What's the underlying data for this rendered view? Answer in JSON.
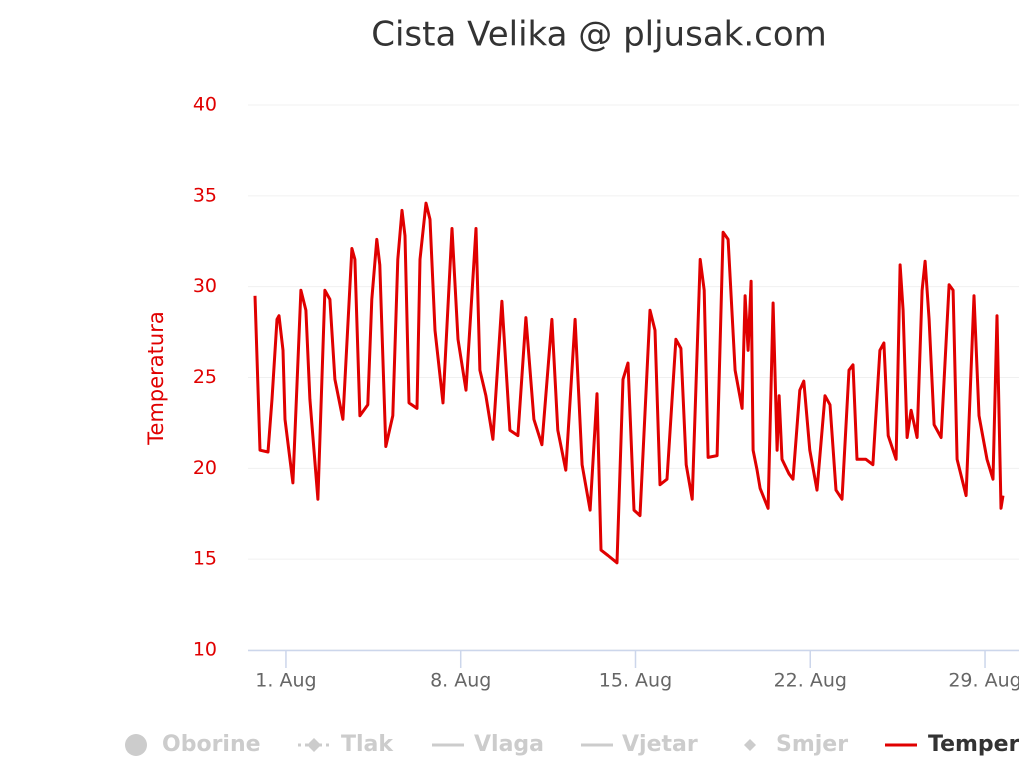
{
  "chart_data": {
    "type": "line",
    "title": "Cista Velika @ pljusak.com",
    "y_axis_label": "Temperatura",
    "axis_color": "#e00000",
    "grid": true,
    "xlim": [
      -0.52,
      30
    ],
    "xticks": [
      {
        "value": 1,
        "label": "1. Aug"
      },
      {
        "value": 8,
        "label": "8. Aug"
      },
      {
        "value": 15,
        "label": "15. Aug"
      },
      {
        "value": 22,
        "label": "22. Aug"
      },
      {
        "value": 29,
        "label": "29. Aug"
      }
    ],
    "ylim": [
      10,
      40
    ],
    "yticks": [
      10,
      15,
      20,
      25,
      30,
      35,
      40
    ],
    "series": [
      {
        "name": "Oborine",
        "visible": false,
        "symbol": "circle"
      },
      {
        "name": "Tlak",
        "visible": false,
        "symbol": "dash-diamond"
      },
      {
        "name": "Vlaga",
        "visible": false,
        "symbol": "line"
      },
      {
        "name": "Vjetar",
        "visible": false,
        "symbol": "line"
      },
      {
        "name": "Smjer",
        "visible": false,
        "symbol": "diamond"
      },
      {
        "name": "Temperatura",
        "visible": true,
        "symbol": "line",
        "color": "#e00000",
        "x": [
          -0.24,
          -0.04,
          0.28,
          0.44,
          0.64,
          0.72,
          0.88,
          0.96,
          1.28,
          1.6,
          1.8,
          1.96,
          2.28,
          2.56,
          2.76,
          2.96,
          3.28,
          3.64,
          3.76,
          3.96,
          4.28,
          4.44,
          4.64,
          4.76,
          5.0,
          5.28,
          5.48,
          5.65,
          5.77,
          5.93,
          6.25,
          6.37,
          6.61,
          6.77,
          6.97,
          7.29,
          7.65,
          7.89,
          8.21,
          8.61,
          8.77,
          9.01,
          9.29,
          9.65,
          9.97,
          10.29,
          10.61,
          10.93,
          11.25,
          11.65,
          11.89,
          12.21,
          12.58,
          12.86,
          13.18,
          13.46,
          13.62,
          13.9,
          14.26,
          14.5,
          14.7,
          14.94,
          15.18,
          15.58,
          15.78,
          15.98,
          16.26,
          16.62,
          16.82,
          17.03,
          17.27,
          17.59,
          17.75,
          17.91,
          18.27,
          18.51,
          18.71,
          18.99,
          19.27,
          19.39,
          19.51,
          19.63,
          19.71,
          19.87,
          19.99,
          20.31,
          20.51,
          20.67,
          20.75,
          20.87,
          21.15,
          21.31,
          21.58,
          21.74,
          21.98,
          22.27,
          22.59,
          22.79,
          23.03,
          23.27,
          23.55,
          23.71,
          23.87,
          24.23,
          24.51,
          24.79,
          24.95,
          25.12,
          25.44,
          25.6,
          25.72,
          25.88,
          26.04,
          26.28,
          26.48,
          26.6,
          26.76,
          26.96,
          27.24,
          27.56,
          27.72,
          27.88,
          28.24,
          28.56,
          28.76,
          29.08,
          29.32,
          29.48,
          29.64,
          29.72
        ],
        "values": [
          29.5,
          21.0,
          20.9,
          23.8,
          28.2,
          28.4,
          26.5,
          22.7,
          19.2,
          29.8,
          28.7,
          23.8,
          18.3,
          29.8,
          29.3,
          24.9,
          22.7,
          32.1,
          31.5,
          22.9,
          23.5,
          29.3,
          32.6,
          31.2,
          21.2,
          22.9,
          31.5,
          34.2,
          32.8,
          23.6,
          23.3,
          31.5,
          34.6,
          33.7,
          27.6,
          23.6,
          33.2,
          27.1,
          24.3,
          33.2,
          25.4,
          24.0,
          21.6,
          29.2,
          22.1,
          21.8,
          28.3,
          22.7,
          21.3,
          28.2,
          22.1,
          19.9,
          28.2,
          20.2,
          17.7,
          24.1,
          15.5,
          15.2,
          14.8,
          24.9,
          25.8,
          17.7,
          17.4,
          28.7,
          27.6,
          19.1,
          19.4,
          27.1,
          26.6,
          20.2,
          18.3,
          31.5,
          29.8,
          20.6,
          20.7,
          33.0,
          32.6,
          25.4,
          23.3,
          29.5,
          26.5,
          30.3,
          21.0,
          19.9,
          18.9,
          17.8,
          29.1,
          21.0,
          24.0,
          20.5,
          19.7,
          19.4,
          24.3,
          24.8,
          21.0,
          18.8,
          24.0,
          23.5,
          18.8,
          18.3,
          25.4,
          25.7,
          20.5,
          20.5,
          20.2,
          26.5,
          26.9,
          21.8,
          20.5,
          31.2,
          28.7,
          21.7,
          23.2,
          21.7,
          29.8,
          31.4,
          28.2,
          22.4,
          21.7,
          30.1,
          29.8,
          20.5,
          18.5,
          29.5,
          22.9,
          20.5,
          19.4,
          28.4,
          17.8,
          18.5
        ]
      }
    ]
  }
}
